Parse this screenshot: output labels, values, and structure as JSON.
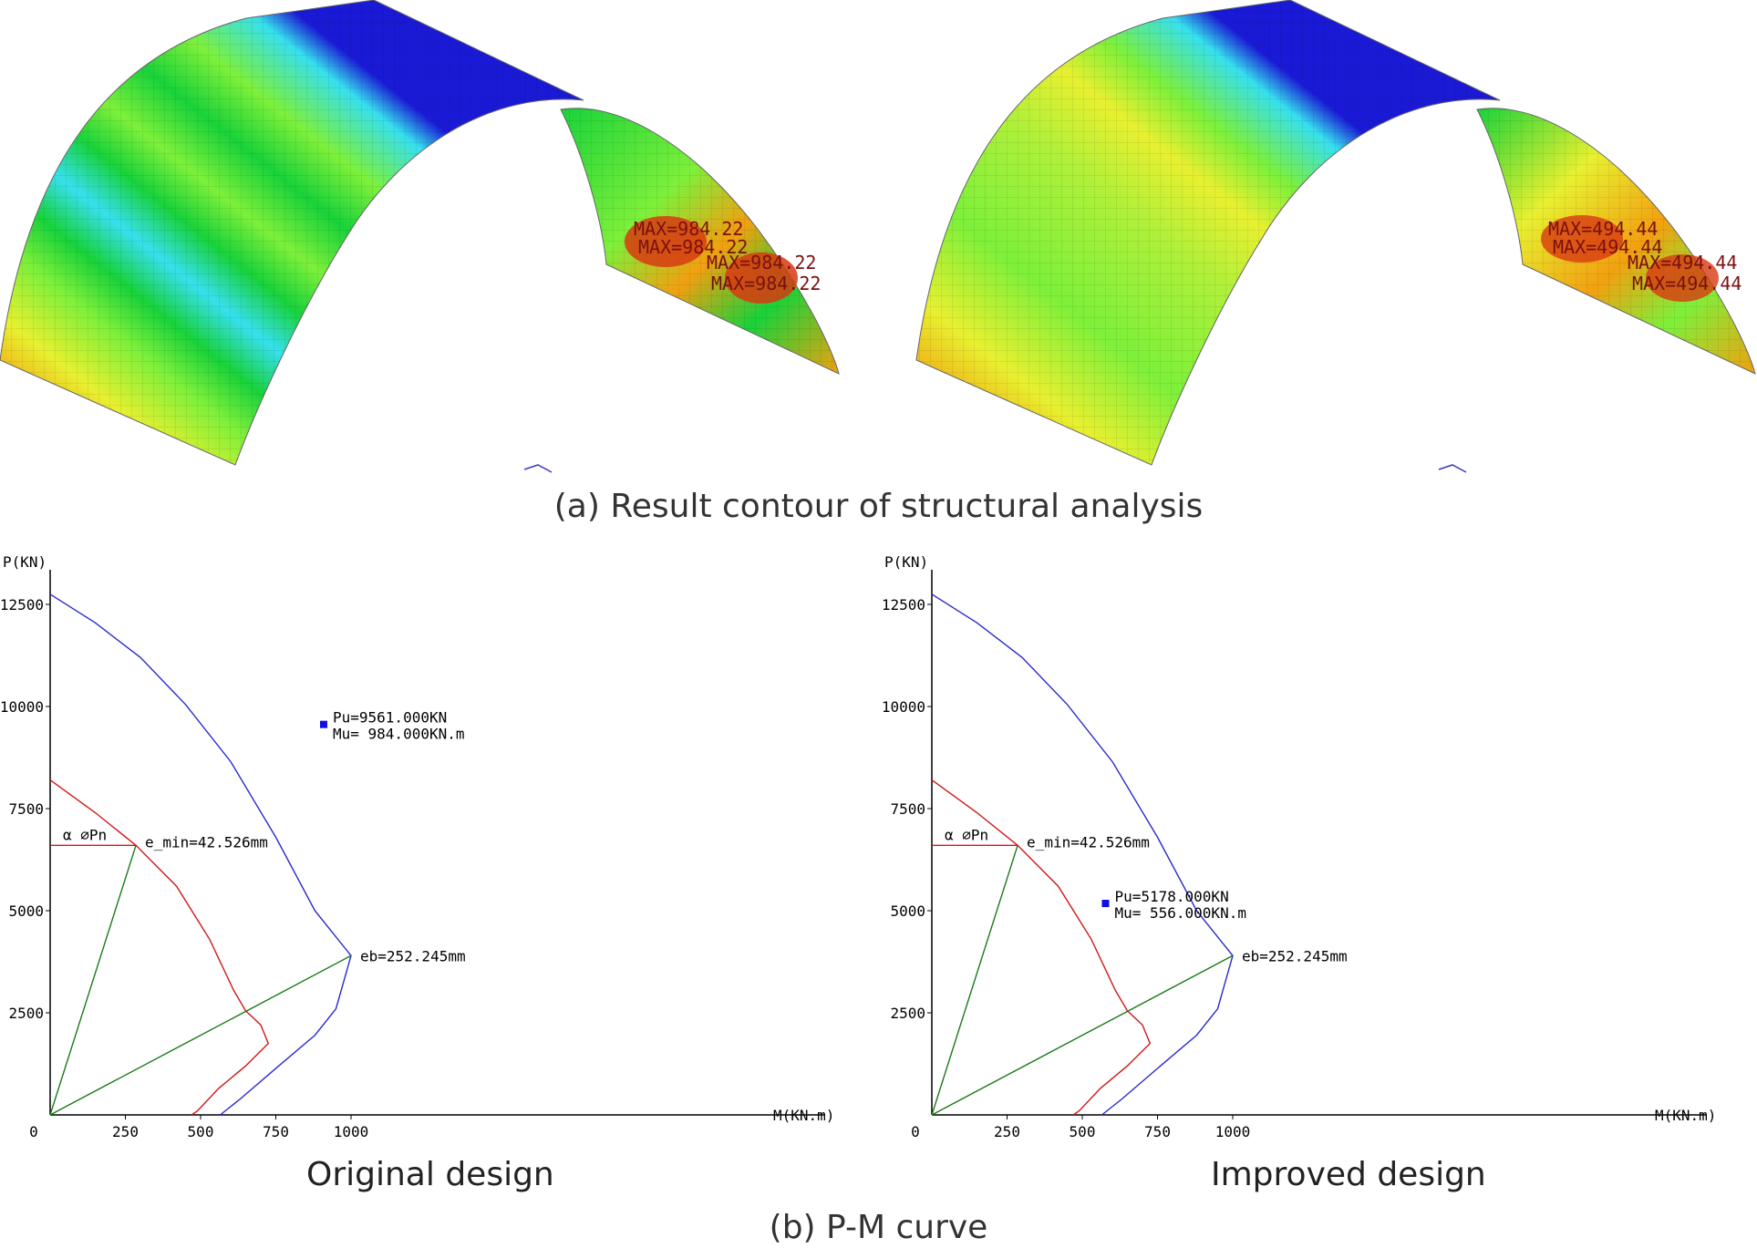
{
  "captions": {
    "a": "(a) Result contour of structural analysis",
    "b": "(b) P-M curve",
    "left": "Original design",
    "right": "Improved design"
  },
  "contours": {
    "left_labels": [
      "MAX=984.22",
      "MAX=984.22",
      "MAX=984.22",
      "MAX=984.22"
    ],
    "right_labels": [
      "MAX=494.44",
      "MAX=494.44",
      "MAX=494.44",
      "MAX=494.44"
    ],
    "colors": {
      "blue": "#1a1ad6",
      "cyan": "#36e0ee",
      "green": "#18d23a",
      "lime": "#7df03a",
      "yellow": "#e8f030",
      "orange": "#f2a010",
      "red": "#d83a10"
    }
  },
  "chart_data": [
    {
      "type": "line",
      "title": "Original design",
      "xlabel": "M(KN.m)",
      "ylabel": "P(KN)",
      "xlim": [
        0,
        1250
      ],
      "ylim": [
        0,
        13000
      ],
      "x_ticks": [
        0,
        250,
        500,
        750,
        1000
      ],
      "y_ticks": [
        2500,
        5000,
        7500,
        10000,
        12500
      ],
      "series": [
        {
          "role": "nominal",
          "color": "#2a2ad0",
          "points": [
            [
              0,
              12750
            ],
            [
              150,
              12050
            ],
            [
              300,
              11200
            ],
            [
              450,
              10050
            ],
            [
              600,
              8650
            ],
            [
              750,
              6800
            ],
            [
              880,
              5000
            ],
            [
              1000,
              3900
            ],
            [
              950,
              2600
            ],
            [
              880,
              1950
            ],
            [
              760,
              1200
            ],
            [
              630,
              380
            ],
            [
              565,
              0
            ]
          ]
        },
        {
          "role": "design",
          "color": "#d01818",
          "points": [
            [
              0,
              8200
            ],
            [
              150,
              7400
            ],
            [
              285,
              6600
            ],
            [
              420,
              5600
            ],
            [
              530,
              4300
            ],
            [
              610,
              3050
            ],
            [
              650,
              2550
            ],
            [
              700,
              2200
            ],
            [
              725,
              1750
            ],
            [
              650,
              1200
            ],
            [
              560,
              650
            ],
            [
              490,
              100
            ],
            [
              470,
              0
            ]
          ]
        },
        {
          "role": "eb-line",
          "color": "#1a7a1a",
          "points": [
            [
              0,
              0
            ],
            [
              1000,
              3900
            ]
          ]
        },
        {
          "role": "emin-line",
          "color": "#1a7a1a",
          "points": [
            [
              0,
              0
            ],
            [
              285,
              6600
            ]
          ]
        },
        {
          "role": "alpha-phi-pn",
          "color": "#d01818",
          "points": [
            [
              0,
              6600
            ],
            [
              285,
              6600
            ]
          ]
        }
      ],
      "annotations": {
        "alpha": "α ∅Pn",
        "emin": "e_min=42.526mm",
        "eb": "eb=252.245mm",
        "pu": "Pu=9561.000KN",
        "mu": "Mu= 984.000KN.m"
      },
      "point": {
        "M": 984,
        "P": 9561
      }
    },
    {
      "type": "line",
      "title": "Improved design",
      "xlabel": "M(KN.m)",
      "ylabel": "P(KN)",
      "xlim": [
        0,
        1250
      ],
      "ylim": [
        0,
        13000
      ],
      "x_ticks": [
        0,
        250,
        500,
        750,
        1000
      ],
      "y_ticks": [
        2500,
        5000,
        7500,
        10000,
        12500
      ],
      "series": [
        {
          "role": "nominal",
          "color": "#2a2ad0",
          "points": [
            [
              0,
              12750
            ],
            [
              150,
              12050
            ],
            [
              300,
              11200
            ],
            [
              450,
              10050
            ],
            [
              600,
              8650
            ],
            [
              750,
              6800
            ],
            [
              880,
              5000
            ],
            [
              1000,
              3900
            ],
            [
              950,
              2600
            ],
            [
              880,
              1950
            ],
            [
              760,
              1200
            ],
            [
              630,
              380
            ],
            [
              565,
              0
            ]
          ]
        },
        {
          "role": "design",
          "color": "#d01818",
          "points": [
            [
              0,
              8200
            ],
            [
              150,
              7400
            ],
            [
              285,
              6600
            ],
            [
              420,
              5600
            ],
            [
              530,
              4300
            ],
            [
              610,
              3050
            ],
            [
              650,
              2550
            ],
            [
              700,
              2200
            ],
            [
              725,
              1750
            ],
            [
              650,
              1200
            ],
            [
              560,
              650
            ],
            [
              490,
              100
            ],
            [
              470,
              0
            ]
          ]
        },
        {
          "role": "eb-line",
          "color": "#1a7a1a",
          "points": [
            [
              0,
              0
            ],
            [
              1000,
              3900
            ]
          ]
        },
        {
          "role": "emin-line",
          "color": "#1a7a1a",
          "points": [
            [
              0,
              0
            ],
            [
              285,
              6600
            ]
          ]
        },
        {
          "role": "alpha-phi-pn",
          "color": "#d01818",
          "points": [
            [
              0,
              6600
            ],
            [
              285,
              6600
            ]
          ]
        }
      ],
      "annotations": {
        "alpha": "α ∅Pn",
        "emin": "e_min=42.526mm",
        "eb": "eb=252.245mm",
        "pu": "Pu=5178.000KN",
        "mu": "Mu= 556.000KN.m"
      },
      "point": {
        "M": 556,
        "P": 5178
      }
    }
  ]
}
